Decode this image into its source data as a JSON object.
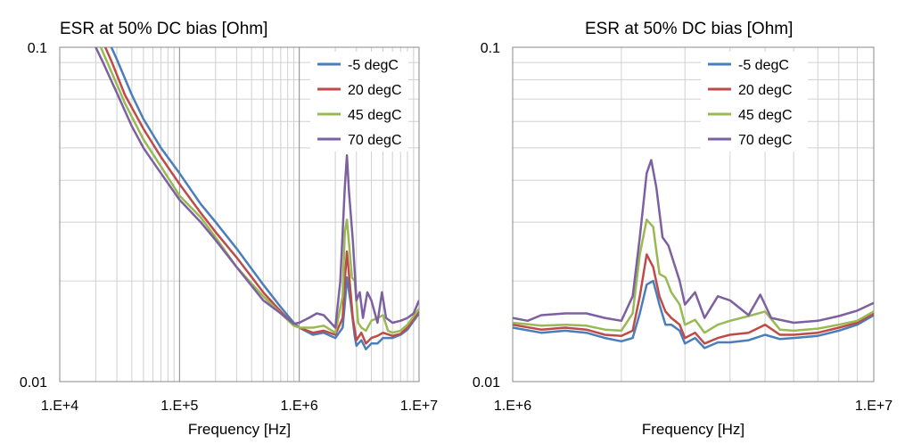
{
  "chart_data": [
    {
      "type": "line",
      "title": "ESR at 50% DC bias [Ohm]",
      "xlabel": "Frequency [Hz]",
      "ylabel": "",
      "x_scale": "log",
      "y_scale": "log",
      "xlim": [
        10000,
        10000000
      ],
      "ylim": [
        0.01,
        0.1
      ],
      "x_tick_labels": [
        "1.E+4",
        "1.E+5",
        "1.E+6",
        "1.E+7"
      ],
      "x_tick_values": [
        10000,
        100000,
        1000000,
        10000000
      ],
      "y_tick_labels": [
        "0.01",
        "0.1"
      ],
      "y_tick_values": [
        0.01,
        0.1
      ],
      "grid": true,
      "legend_position": "top-right",
      "series": [
        {
          "name": "-5 degC",
          "color": "#4a7ebb",
          "points": [
            [
              27000,
              0.1
            ],
            [
              30000,
              0.092
            ],
            [
              40000,
              0.072
            ],
            [
              50000,
              0.061
            ],
            [
              70000,
              0.05
            ],
            [
              100000,
              0.042
            ],
            [
              150000,
              0.034
            ],
            [
              200000,
              0.03
            ],
            [
              300000,
              0.025
            ],
            [
              500000,
              0.0195
            ],
            [
              700000,
              0.0167
            ],
            [
              900000,
              0.015
            ],
            [
              1000000,
              0.0145
            ],
            [
              1300000,
              0.0138
            ],
            [
              1600000,
              0.014
            ],
            [
              2000000,
              0.0135
            ],
            [
              2300000,
              0.0145
            ],
            [
              2400000,
              0.017
            ],
            [
              2500000,
              0.0205
            ],
            [
              2700000,
              0.017
            ],
            [
              2900000,
              0.0137
            ],
            [
              3000000,
              0.0128
            ],
            [
              3300000,
              0.0133
            ],
            [
              3600000,
              0.0125
            ],
            [
              4000000,
              0.013
            ],
            [
              4500000,
              0.013
            ],
            [
              5000000,
              0.0135
            ],
            [
              6000000,
              0.0135
            ],
            [
              7000000,
              0.0138
            ],
            [
              8000000,
              0.0143
            ],
            [
              10000000,
              0.016
            ]
          ]
        },
        {
          "name": "20 degC",
          "color": "#be4b48",
          "points": [
            [
              24000,
              0.1
            ],
            [
              27000,
              0.091
            ],
            [
              35000,
              0.072
            ],
            [
              50000,
              0.057
            ],
            [
              70000,
              0.047
            ],
            [
              100000,
              0.039
            ],
            [
              150000,
              0.032
            ],
            [
              200000,
              0.028
            ],
            [
              300000,
              0.0235
            ],
            [
              500000,
              0.0185
            ],
            [
              700000,
              0.0162
            ],
            [
              900000,
              0.0148
            ],
            [
              1000000,
              0.0145
            ],
            [
              1300000,
              0.014
            ],
            [
              1600000,
              0.0142
            ],
            [
              2000000,
              0.0138
            ],
            [
              2300000,
              0.0155
            ],
            [
              2400000,
              0.02
            ],
            [
              2500000,
              0.0245
            ],
            [
              2600000,
              0.021
            ],
            [
              2800000,
              0.0155
            ],
            [
              3000000,
              0.0133
            ],
            [
              3300000,
              0.014
            ],
            [
              3600000,
              0.013
            ],
            [
              4000000,
              0.0135
            ],
            [
              4500000,
              0.0137
            ],
            [
              5000000,
              0.014
            ],
            [
              6000000,
              0.0137
            ],
            [
              7000000,
              0.0139
            ],
            [
              8000000,
              0.0145
            ],
            [
              10000000,
              0.0162
            ]
          ]
        },
        {
          "name": "45 degC",
          "color": "#98b954",
          "points": [
            [
              22000,
              0.1
            ],
            [
              25000,
              0.09
            ],
            [
              35000,
              0.068
            ],
            [
              50000,
              0.053
            ],
            [
              70000,
              0.044
            ],
            [
              100000,
              0.036
            ],
            [
              150000,
              0.031
            ],
            [
              200000,
              0.027
            ],
            [
              300000,
              0.022
            ],
            [
              500000,
              0.018
            ],
            [
              700000,
              0.016
            ],
            [
              900000,
              0.0147
            ],
            [
              1000000,
              0.0145
            ],
            [
              1300000,
              0.0145
            ],
            [
              1600000,
              0.0147
            ],
            [
              2000000,
              0.014
            ],
            [
              2300000,
              0.018
            ],
            [
              2400000,
              0.028
            ],
            [
              2500000,
              0.0305
            ],
            [
              2600000,
              0.026
            ],
            [
              2750000,
              0.0205
            ],
            [
              2900000,
              0.02
            ],
            [
              3100000,
              0.015
            ],
            [
              3300000,
              0.0145
            ],
            [
              3600000,
              0.0142
            ],
            [
              4000000,
              0.0152
            ],
            [
              4500000,
              0.0155
            ],
            [
              5000000,
              0.0158
            ],
            [
              5500000,
              0.0142
            ],
            [
              6000000,
              0.014
            ],
            [
              7000000,
              0.0142
            ],
            [
              8000000,
              0.0148
            ],
            [
              10000000,
              0.0165
            ]
          ]
        },
        {
          "name": "70 degC",
          "color": "#7d60a0",
          "points": [
            [
              20000,
              0.1
            ],
            [
              23000,
              0.09
            ],
            [
              30000,
              0.073
            ],
            [
              40000,
              0.058
            ],
            [
              50000,
              0.05
            ],
            [
              70000,
              0.042
            ],
            [
              100000,
              0.035
            ],
            [
              150000,
              0.03
            ],
            [
              200000,
              0.0265
            ],
            [
              300000,
              0.022
            ],
            [
              500000,
              0.0175
            ],
            [
              700000,
              0.016
            ],
            [
              900000,
              0.0149
            ],
            [
              1000000,
              0.015
            ],
            [
              1200000,
              0.0155
            ],
            [
              1400000,
              0.016
            ],
            [
              1600000,
              0.0158
            ],
            [
              2000000,
              0.0145
            ],
            [
              2200000,
              0.02
            ],
            [
              2400000,
              0.038
            ],
            [
              2500000,
              0.0475
            ],
            [
              2600000,
              0.037
            ],
            [
              2800000,
              0.0265
            ],
            [
              3000000,
              0.0175
            ],
            [
              3200000,
              0.0185
            ],
            [
              3400000,
              0.0155
            ],
            [
              3700000,
              0.0185
            ],
            [
              4000000,
              0.0175
            ],
            [
              4500000,
              0.015
            ],
            [
              4900000,
              0.0185
            ],
            [
              5300000,
              0.0155
            ],
            [
              6000000,
              0.015
            ],
            [
              7000000,
              0.0152
            ],
            [
              8000000,
              0.0155
            ],
            [
              9000000,
              0.016
            ],
            [
              10000000,
              0.0175
            ]
          ]
        }
      ]
    },
    {
      "type": "line",
      "title": "ESR at 50% DC bias [Ohm]",
      "xlabel": "Frequency [Hz]",
      "ylabel": "",
      "x_scale": "log",
      "y_scale": "log",
      "xlim": [
        1000000,
        10000000
      ],
      "ylim": [
        0.01,
        0.1
      ],
      "x_tick_labels": [
        "1.E+6",
        "1.E+7"
      ],
      "x_tick_values": [
        1000000,
        10000000
      ],
      "y_tick_labels": [
        "0.01",
        "0.1"
      ],
      "y_tick_values": [
        0.01,
        0.1
      ],
      "grid": true,
      "legend_position": "top-right",
      "series": [
        {
          "name": "-5 degC",
          "color": "#4a7ebb",
          "points": [
            [
              1000000,
              0.0145
            ],
            [
              1200000,
              0.014
            ],
            [
              1400000,
              0.0142
            ],
            [
              1600000,
              0.014
            ],
            [
              1800000,
              0.0135
            ],
            [
              2000000,
              0.0132
            ],
            [
              2150000,
              0.0135
            ],
            [
              2250000,
              0.016
            ],
            [
              2350000,
              0.0195
            ],
            [
              2450000,
              0.02
            ],
            [
              2550000,
              0.017
            ],
            [
              2650000,
              0.0148
            ],
            [
              2750000,
              0.0148
            ],
            [
              2900000,
              0.0142
            ],
            [
              3000000,
              0.013
            ],
            [
              3200000,
              0.0135
            ],
            [
              3400000,
              0.0126
            ],
            [
              3700000,
              0.0131
            ],
            [
              4000000,
              0.0131
            ],
            [
              4500000,
              0.0133
            ],
            [
              5000000,
              0.0138
            ],
            [
              5500000,
              0.0134
            ],
            [
              6000000,
              0.0135
            ],
            [
              7000000,
              0.0137
            ],
            [
              8000000,
              0.0142
            ],
            [
              9000000,
              0.0148
            ],
            [
              10000000,
              0.0158
            ]
          ]
        },
        {
          "name": "20 degC",
          "color": "#be4b48",
          "points": [
            [
              1000000,
              0.0148
            ],
            [
              1200000,
              0.0143
            ],
            [
              1400000,
              0.0145
            ],
            [
              1600000,
              0.0143
            ],
            [
              1800000,
              0.0138
            ],
            [
              2000000,
              0.0137
            ],
            [
              2150000,
              0.0142
            ],
            [
              2250000,
              0.018
            ],
            [
              2350000,
              0.024
            ],
            [
              2450000,
              0.022
            ],
            [
              2550000,
              0.018
            ],
            [
              2650000,
              0.0162
            ],
            [
              2750000,
              0.0155
            ],
            [
              2900000,
              0.0148
            ],
            [
              3000000,
              0.0135
            ],
            [
              3200000,
              0.014
            ],
            [
              3400000,
              0.013
            ],
            [
              3700000,
              0.0135
            ],
            [
              4000000,
              0.0138
            ],
            [
              4500000,
              0.014
            ],
            [
              5000000,
              0.0148
            ],
            [
              5500000,
              0.0138
            ],
            [
              6000000,
              0.0138
            ],
            [
              7000000,
              0.014
            ],
            [
              8000000,
              0.0145
            ],
            [
              9000000,
              0.015
            ],
            [
              10000000,
              0.016
            ]
          ]
        },
        {
          "name": "45 degC",
          "color": "#98b954",
          "points": [
            [
              1000000,
              0.015
            ],
            [
              1200000,
              0.0147
            ],
            [
              1400000,
              0.0148
            ],
            [
              1600000,
              0.0147
            ],
            [
              1800000,
              0.0143
            ],
            [
              2000000,
              0.0142
            ],
            [
              2150000,
              0.016
            ],
            [
              2250000,
              0.024
            ],
            [
              2350000,
              0.0305
            ],
            [
              2450000,
              0.029
            ],
            [
              2550000,
              0.021
            ],
            [
              2650000,
              0.0205
            ],
            [
              2750000,
              0.0185
            ],
            [
              2900000,
              0.017
            ],
            [
              3000000,
              0.0148
            ],
            [
              3200000,
              0.0153
            ],
            [
              3400000,
              0.014
            ],
            [
              3700000,
              0.0148
            ],
            [
              4000000,
              0.0152
            ],
            [
              4500000,
              0.0157
            ],
            [
              5000000,
              0.0162
            ],
            [
              5500000,
              0.0143
            ],
            [
              6000000,
              0.0142
            ],
            [
              7000000,
              0.0144
            ],
            [
              8000000,
              0.0148
            ],
            [
              9000000,
              0.0152
            ],
            [
              10000000,
              0.0162
            ]
          ]
        },
        {
          "name": "70 degC",
          "color": "#7d60a0",
          "points": [
            [
              1000000,
              0.0155
            ],
            [
              1100000,
              0.0152
            ],
            [
              1200000,
              0.0158
            ],
            [
              1400000,
              0.016
            ],
            [
              1600000,
              0.016
            ],
            [
              1800000,
              0.0155
            ],
            [
              2000000,
              0.0152
            ],
            [
              2150000,
              0.018
            ],
            [
              2250000,
              0.027
            ],
            [
              2350000,
              0.042
            ],
            [
              2420000,
              0.046
            ],
            [
              2500000,
              0.038
            ],
            [
              2600000,
              0.027
            ],
            [
              2700000,
              0.0255
            ],
            [
              2900000,
              0.02
            ],
            [
              3000000,
              0.017
            ],
            [
              3200000,
              0.0185
            ],
            [
              3400000,
              0.0155
            ],
            [
              3700000,
              0.018
            ],
            [
              4000000,
              0.0175
            ],
            [
              4500000,
              0.0158
            ],
            [
              4850000,
              0.0182
            ],
            [
              5200000,
              0.0155
            ],
            [
              6000000,
              0.015
            ],
            [
              7000000,
              0.0152
            ],
            [
              8000000,
              0.0157
            ],
            [
              9000000,
              0.0163
            ],
            [
              10000000,
              0.0172
            ]
          ]
        }
      ]
    }
  ]
}
